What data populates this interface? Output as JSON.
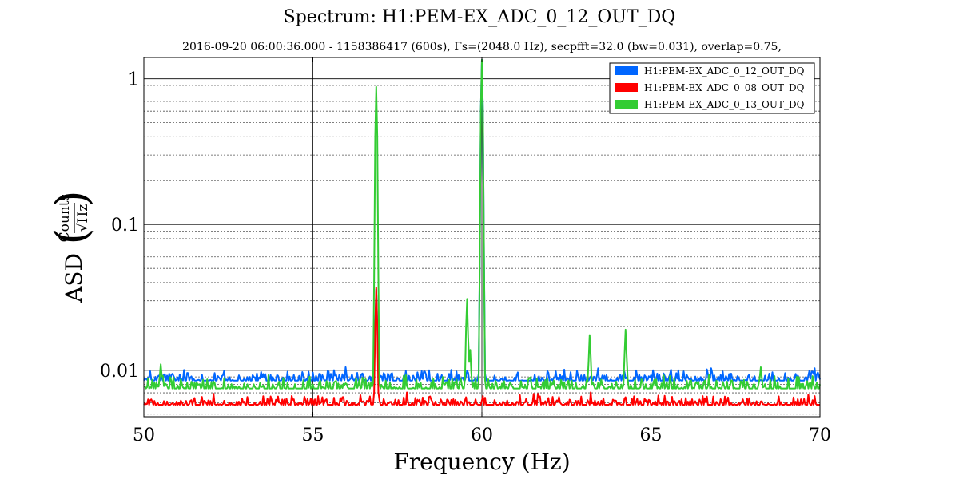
{
  "chart_data": {
    "type": "line",
    "title": "Spectrum: H1:PEM-EX_ADC_0_12_OUT_DQ",
    "subtitle": "2016-09-20 06:00:36.000 - 1158386417 (600s), Fs=(2048.0 Hz), secpfft=32.0 (bw=0.031), overlap=0.75,",
    "xlabel": "Frequency (Hz)",
    "ylabel": "ASD",
    "ylabel_fraction_num": "Counts",
    "ylabel_fraction_den": "√Hz",
    "xscale": "linear",
    "yscale": "log",
    "xlim": [
      50,
      70
    ],
    "ylim": [
      0.0048,
      1.4
    ],
    "x_ticks": [
      50,
      55,
      60,
      65,
      70
    ],
    "x_tick_labels": [
      "50",
      "55",
      "60",
      "65",
      "70"
    ],
    "y_ticks": [
      0.01,
      0.1,
      1
    ],
    "y_tick_labels": [
      "0.01",
      "0.1",
      "1"
    ],
    "grid": true,
    "legend_position": "top-right",
    "series": [
      {
        "name": "H1:PEM-EX_ADC_0_12_OUT_DQ",
        "color": "#0066ff",
        "baseline": 0.0085,
        "noise": 0.0012,
        "peaks": [
          {
            "x": 56.875,
            "y": 0.036
          },
          {
            "x": 60.0,
            "y": 1.35
          }
        ]
      },
      {
        "name": "H1:PEM-EX_ADC_0_08_OUT_DQ",
        "color": "#ff0000",
        "baseline": 0.0058,
        "noise": 0.0007,
        "peaks": [
          {
            "x": 56.875,
            "y": 0.037
          }
        ]
      },
      {
        "name": "H1:PEM-EX_ADC_0_13_OUT_DQ",
        "color": "#33cc33",
        "baseline": 0.0075,
        "noise": 0.0011,
        "peaks": [
          {
            "x": 50.5,
            "y": 0.011
          },
          {
            "x": 56.875,
            "y": 0.88
          },
          {
            "x": 59.56,
            "y": 0.031
          },
          {
            "x": 59.65,
            "y": 0.014
          },
          {
            "x": 60.0,
            "y": 1.35
          },
          {
            "x": 63.19,
            "y": 0.0175
          },
          {
            "x": 64.25,
            "y": 0.019
          },
          {
            "x": 68.25,
            "y": 0.0105
          }
        ]
      }
    ]
  }
}
